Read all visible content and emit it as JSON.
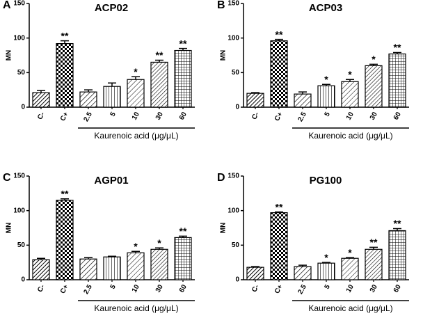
{
  "chart_data": [
    {
      "type": "bar",
      "panel": "A",
      "title": "ACP02",
      "ylabel": "MN",
      "xlabel": "Kaurenoic acid (μg/μL)",
      "categories": [
        "C-",
        "C+",
        "2.5",
        "5",
        "10",
        "30",
        "60"
      ],
      "values": [
        21,
        92,
        22,
        30,
        40,
        65,
        82
      ],
      "errors": [
        3,
        4,
        3,
        5,
        4,
        3,
        3
      ],
      "annotations": [
        null,
        "**",
        null,
        null,
        "*",
        "**",
        "**"
      ],
      "ylim": [
        0,
        150
      ],
      "yticks": [
        0,
        50,
        100,
        150
      ]
    },
    {
      "type": "bar",
      "panel": "B",
      "title": "ACP03",
      "ylabel": "MN",
      "xlabel": "Kaurenoic acid (μg/μL)",
      "categories": [
        "C-",
        "C+",
        "2.5",
        "5",
        "10",
        "30",
        "60"
      ],
      "values": [
        20,
        96,
        19,
        31,
        37,
        60,
        77
      ],
      "errors": [
        1,
        2,
        3,
        2,
        3,
        2,
        2
      ],
      "annotations": [
        null,
        "**",
        null,
        "*",
        "*",
        "*",
        "**"
      ],
      "ylim": [
        0,
        150
      ],
      "yticks": [
        0,
        50,
        100,
        150
      ]
    },
    {
      "type": "bar",
      "panel": "C",
      "title": "AGP01",
      "ylabel": "MN",
      "xlabel": "Kaurenoic acid (μg/μL)",
      "categories": [
        "C-",
        "C+",
        "2.5",
        "5",
        "10",
        "30",
        "60"
      ],
      "values": [
        29,
        115,
        30,
        33,
        39,
        44,
        61
      ],
      "errors": [
        2,
        2,
        2,
        1,
        2,
        2,
        2
      ],
      "annotations": [
        null,
        "**",
        null,
        null,
        "*",
        "*",
        "**"
      ],
      "ylim": [
        0,
        150
      ],
      "yticks": [
        0,
        50,
        100,
        150
      ]
    },
    {
      "type": "bar",
      "panel": "D",
      "title": "PG100",
      "ylabel": "MN",
      "xlabel": "Kaurenoic acid (μg/μL)",
      "categories": [
        "C-",
        "C+",
        "2.5",
        "5",
        "10",
        "30",
        "60"
      ],
      "values": [
        18,
        97,
        19,
        24,
        31,
        44,
        71
      ],
      "errors": [
        1,
        1,
        2,
        1,
        1,
        3,
        3
      ],
      "annotations": [
        null,
        "**",
        null,
        "*",
        "*",
        "**",
        "**"
      ],
      "ylim": [
        0,
        150
      ],
      "yticks": [
        0,
        50,
        100,
        150
      ]
    }
  ]
}
